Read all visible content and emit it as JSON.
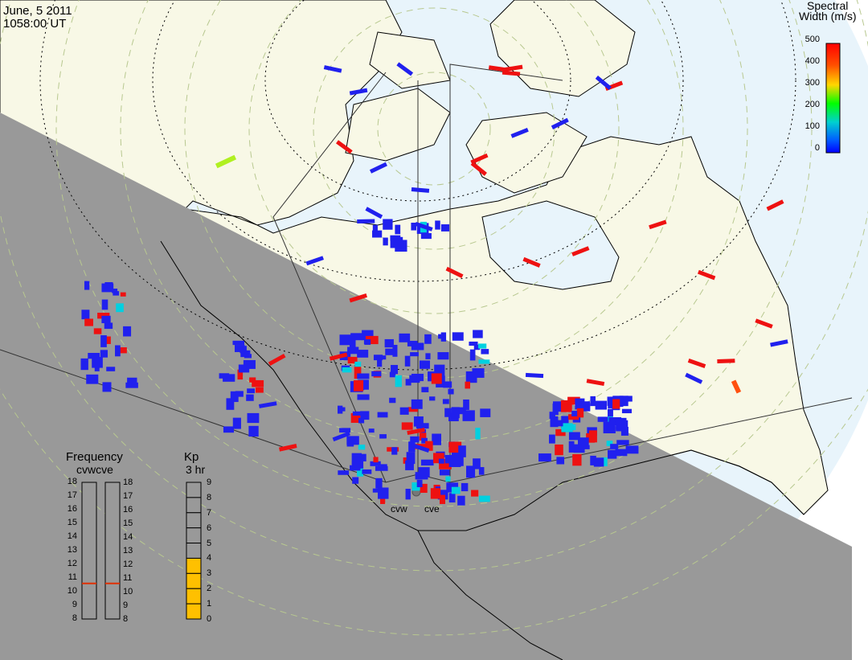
{
  "header": {
    "date": "June, 5 2011",
    "time": "1058:00 UT"
  },
  "colorbar": {
    "title_line1": "Spectral",
    "title_line2": "Width (m/s)",
    "ticks": [
      "500",
      "400",
      "300",
      "200",
      "100",
      "0"
    ],
    "colors": [
      "#ff0000",
      "#ff7f00",
      "#ffd700",
      "#00ff00",
      "#00d0d0",
      "#0040ff",
      "#0000ff"
    ]
  },
  "radars": {
    "west": "cvw",
    "east": "cve"
  },
  "frequency": {
    "title": "Frequency",
    "subtitle": "cvwcve",
    "ticks": [
      "18",
      "17",
      "16",
      "15",
      "14",
      "13",
      "12",
      "11",
      "10",
      "9",
      "8"
    ],
    "cvw_mhz": 10.6,
    "cve_mhz": 10.6,
    "marker_color": "#e03000"
  },
  "kp": {
    "title": "Kp",
    "subtitle": "3 hr",
    "ticks": [
      "9",
      "8",
      "7",
      "6",
      "5",
      "4",
      "3",
      "2",
      "1",
      "0"
    ],
    "value": 4,
    "fill_color": "#ffc000"
  },
  "colors": {
    "night": "#999999",
    "ocean": "#e8f4fb",
    "land": "#f8f8e6",
    "echo_blue": "#2020ee",
    "echo_red": "#ee1111"
  }
}
